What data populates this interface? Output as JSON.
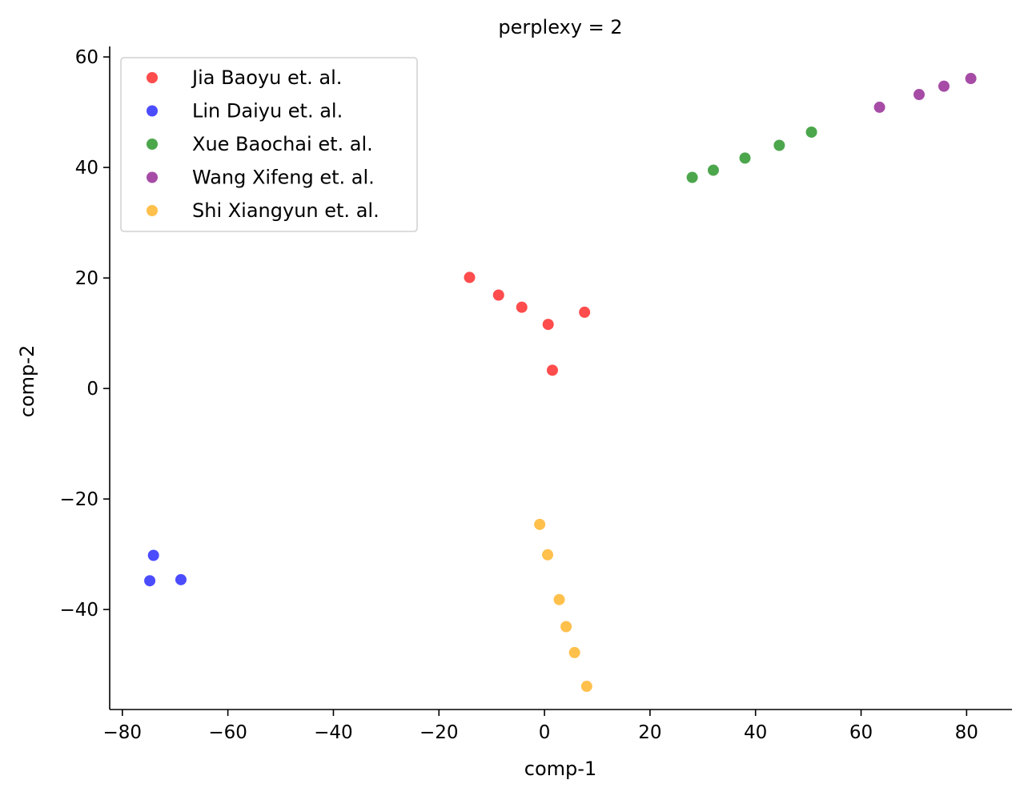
{
  "chart_data": {
    "type": "scatter",
    "title": "perplexy = 2",
    "xlabel": "comp-1",
    "ylabel": "comp-2",
    "xlim": [
      -82.4,
      88.6
    ],
    "ylim": [
      -58.1,
      61.9
    ],
    "xticks": [
      -80,
      -60,
      -40,
      -20,
      0,
      20,
      40,
      60,
      80
    ],
    "yticks": [
      -40,
      -20,
      0,
      20,
      40,
      60
    ],
    "grid": false,
    "legend_position": "top-left",
    "series": [
      {
        "name": "Jia Baoyu et. al.",
        "color": "#ff0000",
        "points": [
          [
            -14.2,
            20.1
          ],
          [
            -8.7,
            16.9
          ],
          [
            -4.3,
            14.7
          ],
          [
            0.7,
            11.6
          ],
          [
            7.6,
            13.8
          ],
          [
            1.5,
            3.3
          ]
        ]
      },
      {
        "name": "Lin Daiyu et. al.",
        "color": "#0000ff",
        "points": [
          [
            -74.1,
            -30.2
          ],
          [
            -74.8,
            -34.8
          ],
          [
            -68.9,
            -34.6
          ]
        ]
      },
      {
        "name": "Xue Baochai et. al.",
        "color": "#008000",
        "points": [
          [
            28.0,
            38.2
          ],
          [
            32.0,
            39.5
          ],
          [
            38.0,
            41.7
          ],
          [
            44.5,
            44.0
          ],
          [
            50.6,
            46.4
          ]
        ]
      },
      {
        "name": "Wang Xifeng et. al.",
        "color": "#800080",
        "points": [
          [
            63.5,
            50.9
          ],
          [
            71.0,
            53.2
          ],
          [
            75.7,
            54.7
          ],
          [
            80.8,
            56.1
          ]
        ]
      },
      {
        "name": "Shi Xiangyun et. al.",
        "color": "#ffa500",
        "points": [
          [
            -0.9,
            -24.6
          ],
          [
            0.6,
            -30.1
          ],
          [
            2.8,
            -38.2
          ],
          [
            4.1,
            -43.1
          ],
          [
            5.7,
            -47.8
          ],
          [
            8.0,
            -53.9
          ]
        ]
      }
    ]
  }
}
